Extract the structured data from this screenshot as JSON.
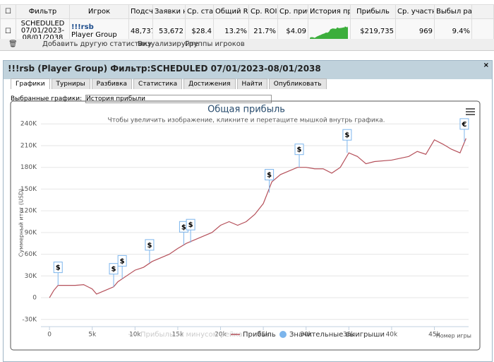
{
  "table": {
    "headers": [
      "Фильтр",
      "Игрок",
      "Подсчет",
      "Заявки н",
      "Ср. ставк",
      "Общий ROI",
      "Ср. ROI",
      "Ср. прибы",
      "История прибы",
      "Прибыль",
      "Ср. участни",
      "Выбыл рано"
    ],
    "row": {
      "filter": "SCHEDULED 07/01/2023-08/01/2038",
      "player": "!!!rsb",
      "player_type": "Player Group",
      "count": "48,737",
      "entries": "53,672",
      "avg_stake": "$28.4",
      "total_roi": "13.2%",
      "avg_roi": "21.7%",
      "avg_profit": "$4.09",
      "profit": "$219,735",
      "avg_field": "969",
      "early_out": "9.4%"
    }
  },
  "toolbar": {
    "add": "Добавить другую статистику",
    "visualize": "Визуализируйте",
    "groups": "Группы игроков"
  },
  "panel": {
    "title": "!!!rsb (Player Group) Фильтр:SCHEDULED 07/01/2023-08/01/2038",
    "tabs": [
      "Графики",
      "Турниры",
      "Разбивка",
      "Статистика",
      "Достижения",
      "Найти",
      "Опубликовать"
    ],
    "selected_tab": 0,
    "select_label": "Выбранные графики:",
    "select_value": "История прибыли"
  },
  "chart_data": {
    "type": "line",
    "title": "Общая прибыль",
    "subtitle": "Чтобы увеличить изображение, кликните и перетащите мышкой внутрь графика.",
    "ylabel": "Суммерный итог (USD)",
    "xlabel": "Номер игры",
    "x": [
      0,
      500,
      1000,
      3000,
      4000,
      5000,
      5500,
      6500,
      7500,
      8000,
      9000,
      10000,
      11000,
      12000,
      13000,
      14000,
      15000,
      16000,
      17000,
      18000,
      19000,
      20000,
      21000,
      22000,
      23000,
      24000,
      25000,
      26000,
      27000,
      28000,
      29000,
      30000,
      31000,
      32000,
      33000,
      34000,
      35000,
      36000,
      37000,
      38000,
      40000,
      42000,
      43000,
      44000,
      45000,
      46000,
      47000,
      48000,
      48700
    ],
    "series": [
      {
        "name": "Прибыль",
        "color": "#b5505a",
        "values": [
          0,
          10000,
          17000,
          17000,
          18000,
          12000,
          5000,
          10000,
          15000,
          22000,
          30000,
          38000,
          42000,
          50000,
          55000,
          60000,
          68000,
          75000,
          80000,
          85000,
          90000,
          100000,
          105000,
          100000,
          105000,
          115000,
          130000,
          160000,
          170000,
          175000,
          180000,
          180000,
          178000,
          178000,
          172000,
          180000,
          200000,
          195000,
          185000,
          188000,
          190000,
          195000,
          202000,
          198000,
          218000,
          212000,
          205000,
          200000,
          220000
        ]
      }
    ],
    "inactive_legend": {
      "name": "Прибыль за минусом рейка",
      "color": "#cccccc"
    },
    "flags": {
      "name": "Значительные выигрыши",
      "color": "#7cb5ec",
      "x": [
        1000,
        7500,
        8500,
        11700,
        15700,
        16500,
        25700,
        29200,
        34800,
        48500
      ],
      "values": [
        17000,
        15000,
        26000,
        48000,
        73000,
        76000,
        145000,
        180000,
        200000,
        215000
      ],
      "labels": [
        "$",
        "$",
        "$",
        "$",
        "$",
        "$",
        "$",
        "$",
        "$",
        "€"
      ]
    },
    "xlim": [
      -1000,
      49000
    ],
    "xticks": [
      0,
      {
        "value": 5000,
        "label": "5k"
      },
      {
        "value": 10000,
        "label": "10k"
      },
      {
        "value": 15000,
        "label": "15k"
      },
      {
        "value": 20000,
        "label": "20k"
      },
      {
        "value": 25000,
        "label": "25k"
      },
      {
        "value": 30000,
        "label": "30k"
      },
      {
        "value": 35000,
        "label": "35k"
      },
      {
        "value": 40000,
        "label": "40k"
      },
      {
        "value": 45000,
        "label": "45k"
      }
    ],
    "ylim": [
      -40000,
      250000
    ],
    "yticks": [
      {
        "value": -30000,
        "label": "-30K"
      },
      0,
      {
        "value": 30000,
        "label": "30K"
      },
      {
        "value": 60000,
        "label": "60K"
      },
      {
        "value": 90000,
        "label": "90K"
      },
      {
        "value": 120000,
        "label": "120K"
      },
      {
        "value": 150000,
        "label": "150K"
      },
      {
        "value": 180000,
        "label": "180K"
      },
      {
        "value": 210000,
        "label": "210K"
      },
      {
        "value": 240000,
        "label": "240K"
      }
    ]
  }
}
